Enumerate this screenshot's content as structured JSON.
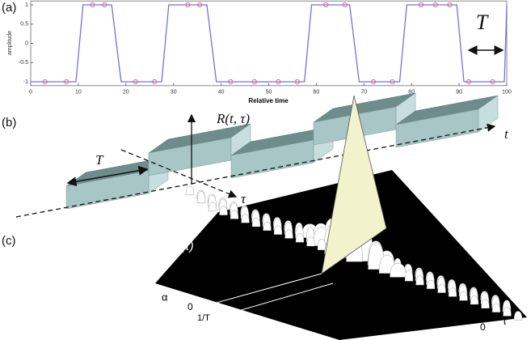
{
  "chart_data": {
    "type": "line",
    "xlabel": "Relative time",
    "ylabel": "amplitude",
    "annotation": "T",
    "x": [
      0,
      9.5,
      11,
      17,
      19,
      27.5,
      29,
      37,
      39,
      57.5,
      59,
      67,
      69,
      77.5,
      79,
      89.5,
      91,
      99.5,
      100
    ],
    "series": [
      {
        "color": "#7070e8",
        "values": [
          -1,
          -1,
          1,
          1,
          -1,
          -1,
          1,
          1,
          -1,
          -1,
          1,
          1,
          -1,
          -1,
          1,
          1,
          -1,
          -1,
          1
        ]
      },
      {
        "color": "#e06a8a",
        "x": [
          3,
          7.5,
          13,
          15.5,
          22,
          26,
          33,
          35.5,
          42,
          47,
          52,
          56,
          62,
          66,
          72,
          76,
          82,
          85,
          88,
          92,
          97
        ],
        "values": [
          -1,
          -1,
          1,
          1,
          -1,
          -1,
          1,
          1,
          -1,
          -1,
          -1,
          -1,
          1,
          1,
          -1,
          -1,
          1,
          1,
          1,
          -1,
          -1
        ]
      }
    ],
    "xlim": [
      0,
      100
    ],
    "xticks": [
      0,
      10,
      20,
      30,
      40,
      50,
      60,
      70,
      80,
      90,
      100
    ],
    "ylim": [
      -1.1,
      1.1
    ],
    "yticks": [
      -1,
      -0.5,
      0,
      0.5,
      1
    ]
  },
  "panel_labels": [
    "(a)",
    "(b)",
    "(c)"
  ],
  "diagram_b": {
    "axis_r": "R(t, τ)",
    "period": "T",
    "axis_tau": "τ",
    "axis_t": "t"
  },
  "diagram_c": {
    "r": "R",
    "alpha_sup": "α",
    "tau_arg": "(τ)",
    "alpha_axis": "α",
    "zero_alpha": "0",
    "one_over_t": "1/T",
    "zero_tau": "0",
    "tau_axis": "τ"
  }
}
